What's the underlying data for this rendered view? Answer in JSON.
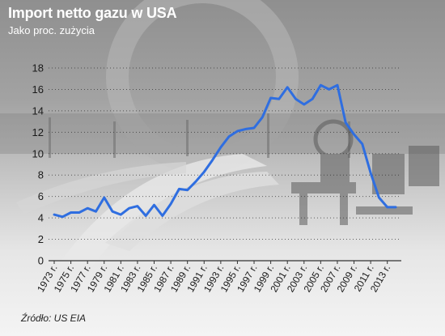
{
  "title": "Import netto gazu w USA",
  "subtitle": "Jako proc. zużycia",
  "source": "Źródło: US EIA",
  "colors": {
    "line": "#2f6ee0",
    "axis": "#333333",
    "grid": "#2a2a2a",
    "text": "#1a1a1a"
  },
  "chart_data": {
    "type": "line",
    "title": "Import netto gazu w USA",
    "subtitle": "Jako proc. zużycia",
    "xlabel": "",
    "ylabel": "",
    "ylim": [
      0,
      18
    ],
    "yticks": [
      0,
      2,
      4,
      6,
      8,
      10,
      12,
      14,
      16,
      18
    ],
    "grid": "horizontal-dotted",
    "legend": "none",
    "x": [
      "1973",
      "1974",
      "1975",
      "1976",
      "1977",
      "1978",
      "1979",
      "1980",
      "1981",
      "1982",
      "1983",
      "1984",
      "1985",
      "1986",
      "1987",
      "1988",
      "1989",
      "1990",
      "1991",
      "1992",
      "1993",
      "1994",
      "1995",
      "1996",
      "1997",
      "1998",
      "1999",
      "2000",
      "2001",
      "2002",
      "2003",
      "2004",
      "2005",
      "2006",
      "2007",
      "2008",
      "2009",
      "2010",
      "2011",
      "2012",
      "2013",
      "2014"
    ],
    "x_tick_labels": [
      "1973 r.",
      "1975 r.",
      "1977 r.",
      "1979 r.",
      "1981 r.",
      "1983 r.",
      "1985 r.",
      "1987 r.",
      "1989 r.",
      "1991 r.",
      "1993 r.",
      "1995 r.",
      "1997 r.",
      "1999 r.",
      "2001 r.",
      "2003 r.",
      "2005 r.",
      "2007 r.",
      "2009 r.",
      "2011 r.",
      "2013 r."
    ],
    "values": [
      4.3,
      4.1,
      4.5,
      4.5,
      4.9,
      4.6,
      5.9,
      4.6,
      4.3,
      4.9,
      5.1,
      4.2,
      5.2,
      4.2,
      5.3,
      6.7,
      6.6,
      7.4,
      8.3,
      9.4,
      10.6,
      11.6,
      12.1,
      12.3,
      12.4,
      13.4,
      15.2,
      15.1,
      16.2,
      15.1,
      14.6,
      15.1,
      16.4,
      16.0,
      16.4,
      12.9,
      11.8,
      10.9,
      8.2,
      5.9,
      5.0,
      5.0
    ]
  }
}
